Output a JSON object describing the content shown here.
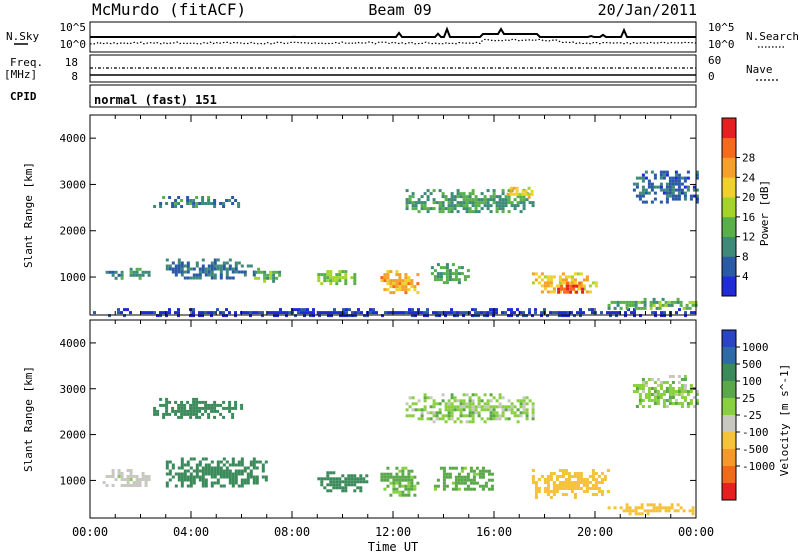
{
  "header": {
    "station": "McMurdo (fitACF)",
    "beam": "Beam 09",
    "date": "20/Jan/2011"
  },
  "panels": {
    "nsky": {
      "left_label": "N.Sky",
      "left_ticks": [
        "10^5",
        "10^0"
      ],
      "right_label": "N.Search",
      "right_ticks": [
        "10^5",
        "10^0"
      ]
    },
    "freq": {
      "left_label_1": "Freq.",
      "left_label_2": "[MHz]",
      "left_ticks": [
        "18",
        "8"
      ],
      "right_label": "Nave",
      "right_ticks": [
        "60",
        "0"
      ]
    },
    "cpid": {
      "label": "CPID",
      "text": "normal (fast) 151"
    }
  },
  "chart_data": [
    {
      "type": "heatmap",
      "name": "power",
      "xlabel": "Time UT",
      "ylabel": "Slant Range [km]",
      "ylim": [
        180,
        4500
      ],
      "xlim": [
        0,
        24
      ],
      "yticks": [
        "1000",
        "2000",
        "3000",
        "4000"
      ],
      "yticks_values": [
        1000,
        2000,
        3000,
        4000
      ],
      "colorbar": {
        "label": "Power [dB]",
        "ticks": [
          "4",
          "8",
          "12",
          "16",
          "20",
          "24",
          "28"
        ],
        "colors": [
          "#1e2bd6",
          "#2a5aa6",
          "#3e8a78",
          "#59b04a",
          "#a4d42a",
          "#f0d02a",
          "#f5a02a",
          "#f56a1c",
          "#e62020"
        ]
      },
      "regions": [
        {
          "t": [
            0.0,
            24.0
          ],
          "r": [
            180,
            330
          ],
          "db": 4
        },
        {
          "t": [
            0.5,
            2.5
          ],
          "r": [
            1000,
            1200
          ],
          "db": 10
        },
        {
          "t": [
            2.5,
            6.0
          ],
          "r": [
            2500,
            2750
          ],
          "db": 10
        },
        {
          "t": [
            3.0,
            6.5
          ],
          "r": [
            1000,
            1400
          ],
          "db": 9
        },
        {
          "t": [
            6.5,
            7.5
          ],
          "r": [
            900,
            1200
          ],
          "db": 14
        },
        {
          "t": [
            9.0,
            10.5
          ],
          "r": [
            850,
            1150
          ],
          "db": 16
        },
        {
          "t": [
            11.5,
            13.0
          ],
          "r": [
            650,
            1150
          ],
          "db": 24
        },
        {
          "t": [
            13.5,
            15.0
          ],
          "r": [
            900,
            1300
          ],
          "db": 13
        },
        {
          "t": [
            12.5,
            17.5
          ],
          "r": [
            2400,
            2900
          ],
          "db": 12
        },
        {
          "t": [
            16.5,
            17.5
          ],
          "r": [
            2750,
            2950
          ],
          "db": 22
        },
        {
          "t": [
            17.5,
            20.0
          ],
          "r": [
            700,
            1100
          ],
          "db": 22
        },
        {
          "t": [
            18.5,
            19.5
          ],
          "r": [
            650,
            900
          ],
          "db": 30
        },
        {
          "t": [
            20.5,
            24.0
          ],
          "r": [
            320,
            550
          ],
          "db": 14
        },
        {
          "t": [
            21.5,
            24.0
          ],
          "r": [
            2600,
            3300
          ],
          "db": 8
        }
      ]
    },
    {
      "type": "heatmap",
      "name": "velocity",
      "xlabel": "Time UT",
      "ylabel": "Slant Range [km]",
      "ylim": [
        180,
        4500
      ],
      "xlim": [
        0,
        24
      ],
      "xticks": [
        "00:00",
        "04:00",
        "08:00",
        "12:00",
        "16:00",
        "20:00",
        "00:00"
      ],
      "xticks_values": [
        0,
        4,
        8,
        12,
        16,
        20,
        24
      ],
      "yticks": [
        "1000",
        "2000",
        "3000",
        "4000"
      ],
      "yticks_values": [
        1000,
        2000,
        3000,
        4000
      ],
      "colorbar": {
        "label": "Velocity [m s^-1]",
        "ticks": [
          "1000",
          "500",
          "100",
          "25",
          "-25",
          "-100",
          "-500",
          "-1000"
        ],
        "colors": [
          "#2a44c4",
          "#2e6aa8",
          "#3a8a5a",
          "#5aa84a",
          "#88d040",
          "#c8c8c0",
          "#f5c23a",
          "#f59a2a",
          "#f06a1c",
          "#e62020"
        ]
      },
      "regions": [
        {
          "t": [
            0.5,
            2.5
          ],
          "r": [
            900,
            1250
          ],
          "v": -60
        },
        {
          "t": [
            2.5,
            6.0
          ],
          "r": [
            2400,
            2800
          ],
          "v": 300
        },
        {
          "t": [
            3.0,
            7.0
          ],
          "r": [
            900,
            1500
          ],
          "v": 300
        },
        {
          "t": [
            9.0,
            11.0
          ],
          "r": [
            800,
            1200
          ],
          "v": 300
        },
        {
          "t": [
            11.5,
            13.0
          ],
          "r": [
            700,
            1300
          ],
          "v": 50
        },
        {
          "t": [
            12.5,
            17.5
          ],
          "r": [
            2300,
            2900
          ],
          "v": 0
        },
        {
          "t": [
            13.5,
            16.0
          ],
          "r": [
            800,
            1300
          ],
          "v": 60
        },
        {
          "t": [
            17.5,
            20.5
          ],
          "r": [
            650,
            1250
          ],
          "v": -300
        },
        {
          "t": [
            20.5,
            24.0
          ],
          "r": [
            300,
            500
          ],
          "v": -200
        },
        {
          "t": [
            21.5,
            24.0
          ],
          "r": [
            2600,
            3300
          ],
          "v": 0
        }
      ]
    }
  ]
}
